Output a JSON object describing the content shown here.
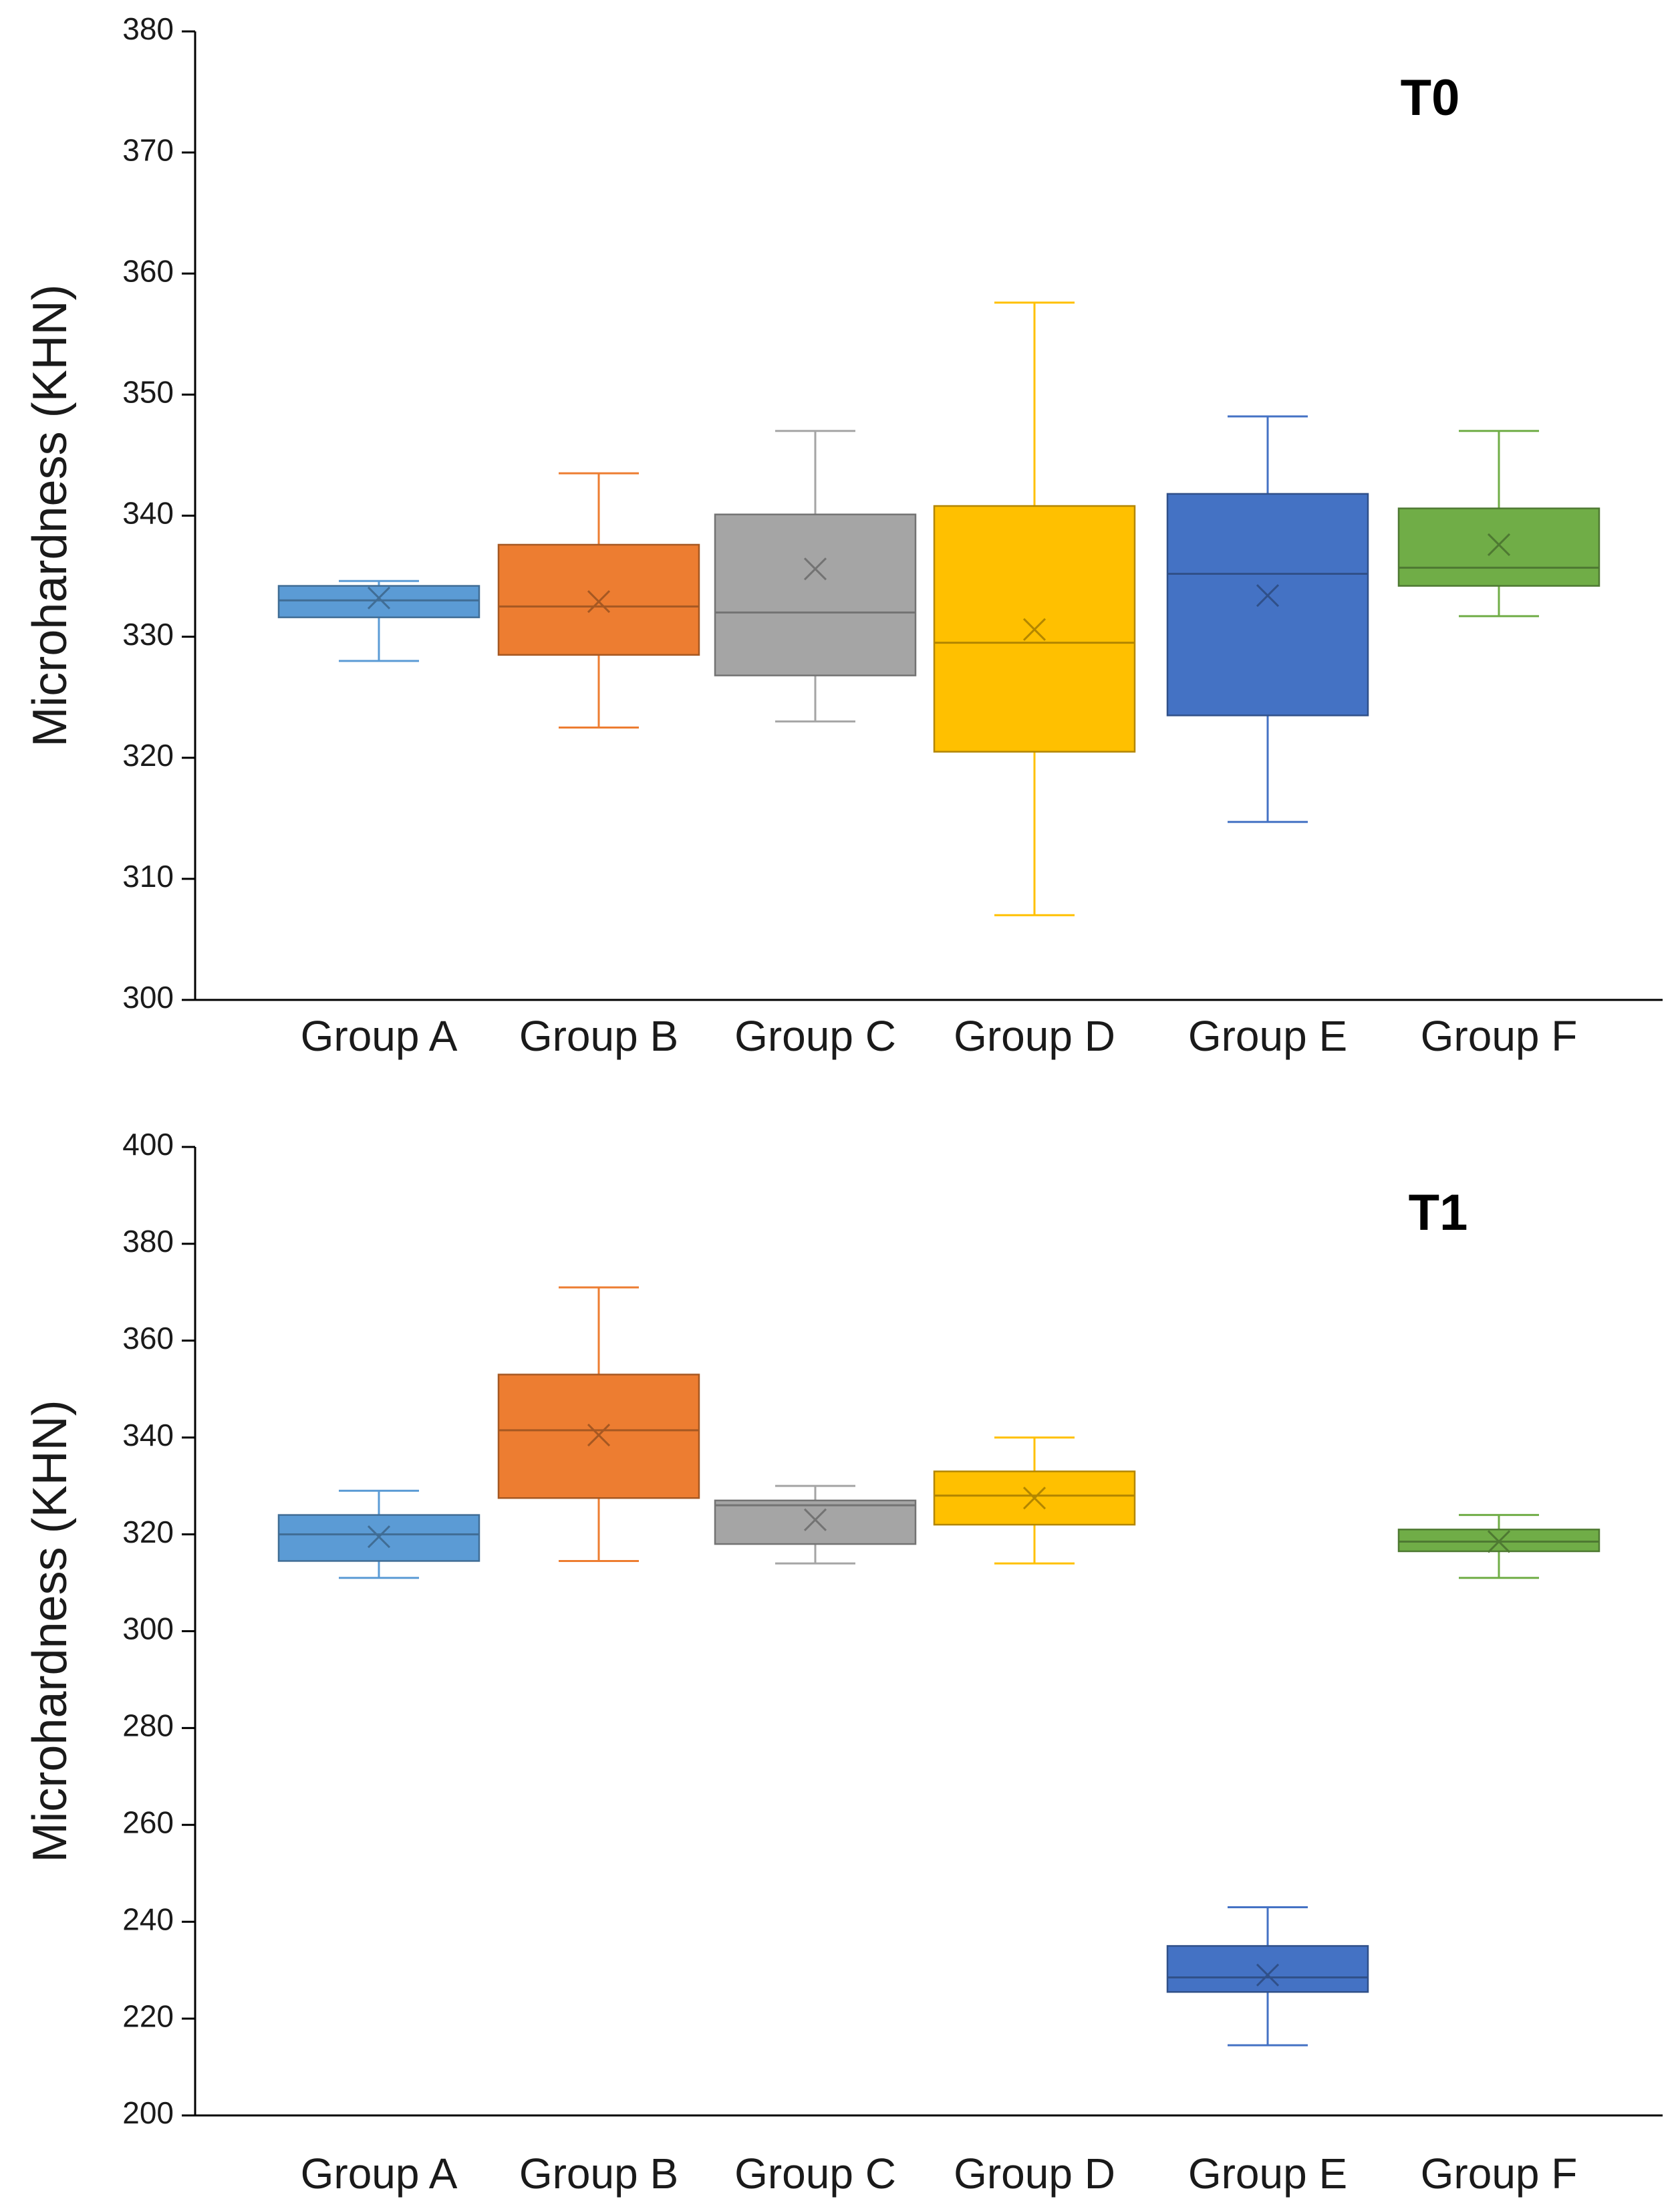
{
  "chart_data": [
    {
      "type": "box",
      "title": "T0",
      "xlabel": "",
      "ylabel": "Microhardness (KHN)",
      "ylim": [
        300,
        380
      ],
      "yticks": [
        300,
        310,
        320,
        330,
        340,
        350,
        360,
        370,
        380
      ],
      "ytick_labels": [
        "300",
        "310",
        "320",
        "330",
        "340",
        "350",
        "360",
        "370",
        "380"
      ],
      "grid": false,
      "categories": [
        "Group A",
        "Group B",
        "Group C",
        "Group D",
        "Group E",
        "Group F"
      ],
      "boxes": [
        {
          "min": 328.0,
          "q1": 331.6,
          "median": 333.0,
          "q3": 334.2,
          "max": 334.6,
          "mean": 333.2,
          "color": "#5B9BD5"
        },
        {
          "min": 322.5,
          "q1": 328.5,
          "median": 332.5,
          "q3": 337.6,
          "max": 343.5,
          "mean": 332.9,
          "color": "#ED7D31"
        },
        {
          "min": 323.0,
          "q1": 326.8,
          "median": 332.0,
          "q3": 340.1,
          "max": 347.0,
          "mean": 335.6,
          "color": "#A5A5A5"
        },
        {
          "min": 307.0,
          "q1": 320.5,
          "median": 329.5,
          "q3": 340.8,
          "max": 357.6,
          "mean": 330.6,
          "color": "#FFC000"
        },
        {
          "min": 314.7,
          "q1": 323.5,
          "median": 335.2,
          "q3": 341.8,
          "max": 348.2,
          "mean": 333.4,
          "color": "#4472C4"
        },
        {
          "min": 331.7,
          "q1": 334.2,
          "median": 335.7,
          "q3": 340.6,
          "max": 347.0,
          "mean": 337.6,
          "color": "#70AD47"
        }
      ]
    },
    {
      "type": "box",
      "title": "T1",
      "xlabel": "",
      "ylabel": "Microhardness (KHN)",
      "ylim": [
        200,
        400
      ],
      "yticks": [
        200,
        220,
        240,
        260,
        280,
        300,
        320,
        340,
        360,
        380,
        400
      ],
      "ytick_labels": [
        "200",
        "220",
        "240",
        "260",
        "280",
        "300",
        "320",
        "340",
        "360",
        "380",
        "400"
      ],
      "grid": false,
      "categories": [
        "Group A",
        "Group B",
        "Group C",
        "Group D",
        "Group E",
        "Group F"
      ],
      "boxes": [
        {
          "min": 311.0,
          "q1": 314.5,
          "median": 320.0,
          "q3": 324.0,
          "max": 329.0,
          "mean": 319.5,
          "color": "#5B9BD5"
        },
        {
          "min": 314.5,
          "q1": 327.5,
          "median": 341.5,
          "q3": 353.0,
          "max": 371.0,
          "mean": 340.5,
          "color": "#ED7D31"
        },
        {
          "min": 314.0,
          "q1": 318.0,
          "median": 326.0,
          "q3": 327.0,
          "max": 330.0,
          "mean": 323.0,
          "color": "#A5A5A5"
        },
        {
          "min": 314.0,
          "q1": 322.0,
          "median": 328.0,
          "q3": 333.0,
          "max": 340.0,
          "mean": 327.5,
          "color": "#FFC000"
        },
        {
          "min": 214.5,
          "q1": 225.5,
          "median": 228.5,
          "q3": 235.0,
          "max": 243.0,
          "mean": 229.0,
          "color": "#4472C4"
        },
        {
          "min": 311.0,
          "q1": 316.5,
          "median": 318.5,
          "q3": 321.0,
          "max": 324.0,
          "mean": 318.5,
          "color": "#70AD47"
        }
      ]
    }
  ]
}
